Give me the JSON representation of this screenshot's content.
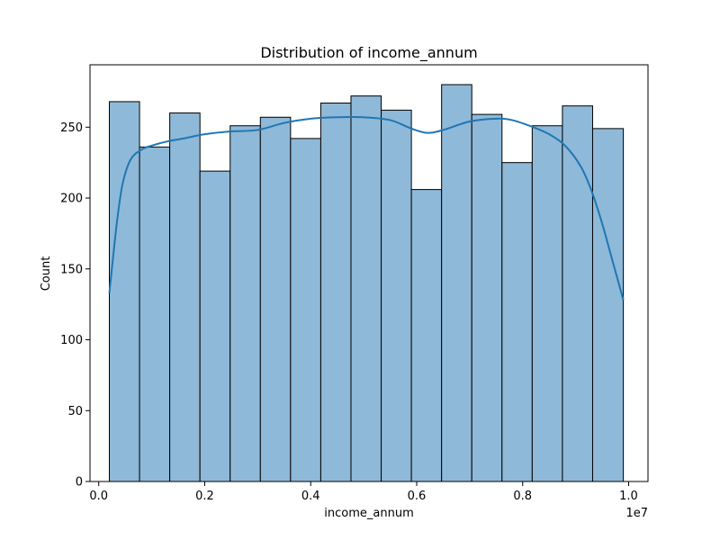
{
  "chart_data": {
    "type": "bar",
    "title": "Distribution of income_annum",
    "xlabel": "income_annum",
    "ylabel": "Count",
    "x_offset_label": "1e7",
    "x_scale": 10000000,
    "xlim": [
      -0.0165,
      1.0365
    ],
    "ylim": [
      0,
      294
    ],
    "grid": false,
    "bin_edges": [
      0.02,
      0.077,
      0.134,
      0.191,
      0.248,
      0.305,
      0.362,
      0.419,
      0.476,
      0.533,
      0.59,
      0.647,
      0.704,
      0.761,
      0.818,
      0.875,
      0.932,
      0.99
    ],
    "counts": [
      268,
      236,
      260,
      219,
      251,
      257,
      242,
      267,
      272,
      262,
      206,
      280,
      259,
      225,
      251,
      265,
      249
    ],
    "x_ticks": [
      0.0,
      0.2,
      0.4,
      0.6,
      0.8,
      1.0
    ],
    "x_tick_labels": [
      "0.0",
      "0.2",
      "0.4",
      "0.6",
      "0.8",
      "1.0"
    ],
    "y_ticks": [
      0,
      50,
      100,
      150,
      200,
      250
    ],
    "y_tick_labels": [
      "0",
      "50",
      "100",
      "150",
      "200",
      "250"
    ],
    "kde": {
      "x": [
        0.02,
        0.027,
        0.035,
        0.045,
        0.06,
        0.08,
        0.1,
        0.13,
        0.16,
        0.2,
        0.25,
        0.3,
        0.35,
        0.4,
        0.45,
        0.5,
        0.55,
        0.59,
        0.62,
        0.65,
        0.7,
        0.75,
        0.78,
        0.82,
        0.85,
        0.88,
        0.91,
        0.93,
        0.95,
        0.97,
        0.99
      ],
      "y": [
        133,
        158,
        185,
        210,
        227,
        234,
        237,
        240,
        242,
        245,
        247,
        248,
        253,
        256,
        257,
        257,
        255,
        249,
        246,
        248,
        254,
        256,
        255,
        250,
        245,
        237,
        222,
        205,
        182,
        155,
        128
      ]
    },
    "bar_color": "#8fb9d8",
    "bar_edge_color": "#000000",
    "kde_color": "#1f77b4"
  }
}
